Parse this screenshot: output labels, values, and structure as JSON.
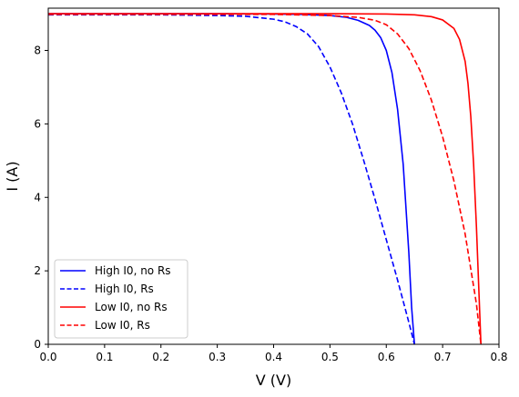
{
  "chart_data": {
    "type": "line",
    "title": "",
    "xlabel": "V (V)",
    "ylabel": "I (A)",
    "xlim": [
      0.0,
      0.8
    ],
    "ylim": [
      0,
      9.15
    ],
    "xticks": [
      "0.0",
      "0.1",
      "0.2",
      "0.3",
      "0.4",
      "0.5",
      "0.6",
      "0.7",
      "0.8"
    ],
    "yticks": [
      "0",
      "2",
      "4",
      "6",
      "8"
    ],
    "grid": false,
    "legend_position": "lower-left",
    "series": [
      {
        "name": "High I0, no Rs",
        "color": "#0000ff",
        "dash": "solid",
        "x": [
          0.0,
          0.3,
          0.4,
          0.45,
          0.5,
          0.53,
          0.55,
          0.57,
          0.58,
          0.59,
          0.6,
          0.61,
          0.62,
          0.63,
          0.64,
          0.645,
          0.65
        ],
        "y": [
          9.0,
          9.0,
          8.99,
          8.98,
          8.95,
          8.9,
          8.82,
          8.68,
          8.55,
          8.35,
          8.0,
          7.4,
          6.4,
          4.9,
          2.5,
          1.0,
          0.0
        ]
      },
      {
        "name": "High I0, Rs",
        "color": "#0000ff",
        "dash": "dashed",
        "x": [
          0.0,
          0.2,
          0.3,
          0.35,
          0.4,
          0.42,
          0.44,
          0.46,
          0.48,
          0.5,
          0.52,
          0.54,
          0.56,
          0.58,
          0.6,
          0.62,
          0.64,
          0.65
        ],
        "y": [
          8.97,
          8.97,
          8.95,
          8.93,
          8.85,
          8.78,
          8.65,
          8.45,
          8.1,
          7.55,
          6.85,
          6.0,
          5.0,
          3.95,
          2.85,
          1.75,
          0.6,
          0.0
        ]
      },
      {
        "name": "Low I0, no Rs",
        "color": "#ff0000",
        "dash": "solid",
        "x": [
          0.0,
          0.5,
          0.6,
          0.65,
          0.68,
          0.7,
          0.72,
          0.73,
          0.74,
          0.745,
          0.75,
          0.755,
          0.76,
          0.765,
          0.768
        ],
        "y": [
          9.0,
          9.0,
          8.99,
          8.97,
          8.92,
          8.83,
          8.6,
          8.3,
          7.7,
          7.1,
          6.2,
          4.9,
          3.2,
          1.2,
          0.0
        ]
      },
      {
        "name": "Low I0, Rs",
        "color": "#ff0000",
        "dash": "dashed",
        "x": [
          0.0,
          0.4,
          0.5,
          0.55,
          0.58,
          0.6,
          0.62,
          0.64,
          0.66,
          0.68,
          0.7,
          0.72,
          0.74,
          0.76,
          0.768
        ],
        "y": [
          8.98,
          8.98,
          8.95,
          8.9,
          8.82,
          8.7,
          8.45,
          8.05,
          7.45,
          6.65,
          5.65,
          4.45,
          3.0,
          1.1,
          0.0
        ]
      }
    ]
  }
}
